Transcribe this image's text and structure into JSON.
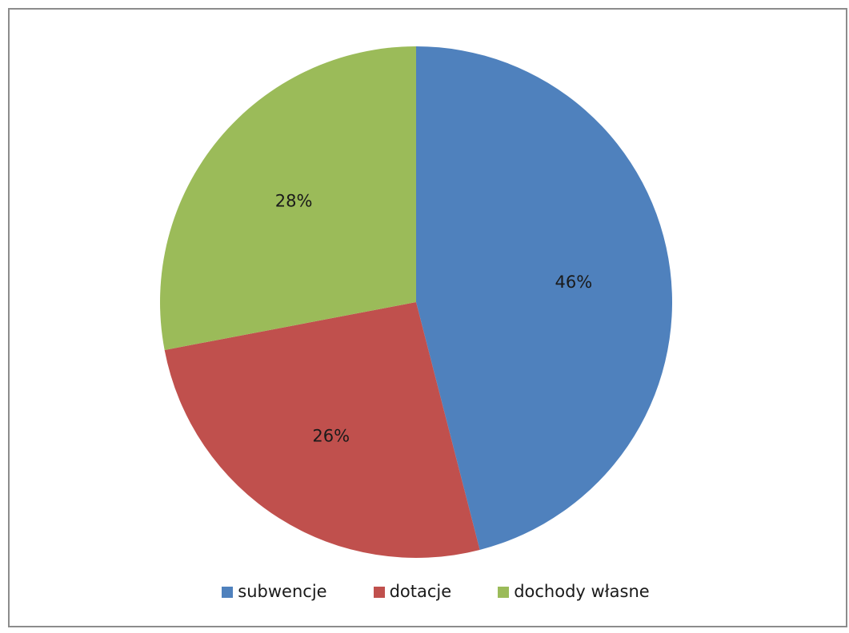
{
  "chart_data": {
    "type": "pie",
    "categories": [
      "subwencje",
      "dotacje",
      "dochody własne"
    ],
    "values": [
      46,
      26,
      28
    ],
    "data_labels": [
      "46%",
      "26%",
      "28%"
    ],
    "colors": [
      "#4f81bd",
      "#c0504d",
      "#9bbb59"
    ],
    "start_angle_deg": 0,
    "direction": "clockwise",
    "legend_position": "bottom",
    "title": ""
  }
}
